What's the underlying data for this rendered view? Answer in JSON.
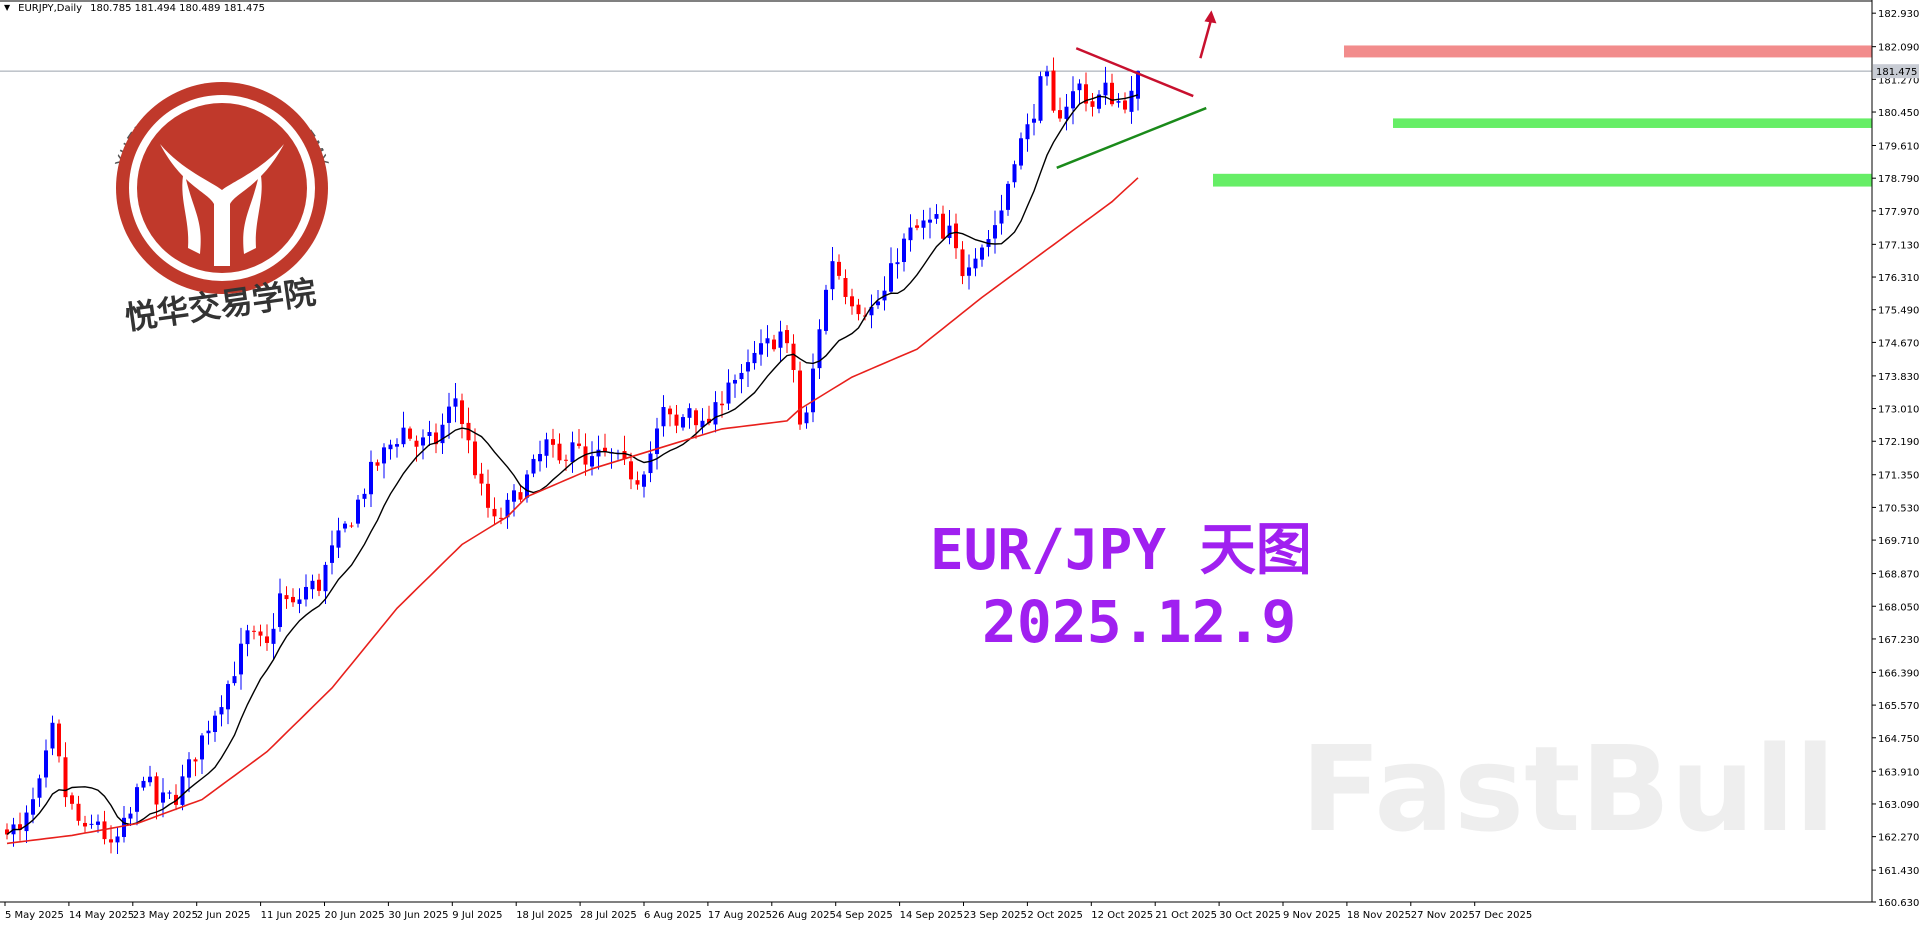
{
  "header": {
    "symbol": "EURJPY,Daily",
    "ohlc": "180.785 181.494 180.489 181.475"
  },
  "overlay": {
    "title": "EUR/JPY  天图",
    "date": "2025.12.9"
  },
  "logo": {
    "text_en": "YUEHUA TRADING ACADEMY",
    "text_cn": "悦华交易学院",
    "color": "#c0392b"
  },
  "watermark": {
    "text": "FastBull"
  },
  "colors": {
    "bull": "#0000ff",
    "bear": "#ff0000",
    "ma_fast": "#000000",
    "ma_slow": "#e8201c",
    "resistance_zone": "#f07878",
    "support_zone": "#66ee66",
    "trendline_upper": "#c8102e",
    "trendline_lower": "#1a8a1a",
    "arrow": "#c8102e",
    "price_line": "#9aa2ac"
  },
  "chart_data": {
    "type": "candlestick",
    "symbol": "EURJPY",
    "timeframe": "Daily",
    "ylim": [
      160.63,
      183.06
    ],
    "y_ticks": [
      "182.930",
      "182.090",
      "181.270",
      "180.450",
      "179.610",
      "178.790",
      "177.970",
      "177.130",
      "176.310",
      "175.490",
      "174.670",
      "173.830",
      "173.010",
      "172.190",
      "171.350",
      "170.530",
      "169.710",
      "168.870",
      "168.050",
      "167.230",
      "166.390",
      "165.570",
      "164.750",
      "163.910",
      "163.090",
      "162.270",
      "161.430",
      "160.630"
    ],
    "current_price": "181.475",
    "x_labels": [
      "5 May 2025",
      "14 May 2025",
      "23 May 2025",
      "2 Jun 2025",
      "11 Jun 2025",
      "20 Jun 2025",
      "30 Jun 2025",
      "9 Jul 2025",
      "18 Jul 2025",
      "28 Jul 2025",
      "6 Aug 2025",
      "17 Aug 2025",
      "26 Aug 2025",
      "4 Sep 2025",
      "14 Sep 2025",
      "23 Sep 2025",
      "2 Oct 2025",
      "12 Oct 2025",
      "21 Oct 2025",
      "30 Oct 2025",
      "9 Nov 2025",
      "18 Nov 2025",
      "27 Nov 2025",
      "7 Dec 2025"
    ],
    "anchors": [
      [
        0,
        162.6
      ],
      [
        2,
        162.3
      ],
      [
        5,
        163.5
      ],
      [
        7,
        164.9
      ],
      [
        9,
        163.3
      ],
      [
        12,
        162.3
      ],
      [
        14,
        162.7
      ],
      [
        16,
        161.9
      ],
      [
        17,
        162.2
      ],
      [
        19,
        162.8
      ],
      [
        21,
        163.9
      ],
      [
        23,
        163.1
      ],
      [
        26,
        163.3
      ],
      [
        28,
        164.0
      ],
      [
        31,
        165.1
      ],
      [
        34,
        166.1
      ],
      [
        37,
        167.3
      ],
      [
        40,
        167.0
      ],
      [
        42,
        168.3
      ],
      [
        44,
        168.0
      ],
      [
        46,
        168.5
      ],
      [
        48,
        168.6
      ],
      [
        50,
        169.4
      ],
      [
        53,
        170.3
      ],
      [
        56,
        171.4
      ],
      [
        59,
        172.1
      ],
      [
        61,
        172.5
      ],
      [
        63,
        172.1
      ],
      [
        66,
        172.2
      ],
      [
        69,
        173.3
      ],
      [
        71,
        172.1
      ],
      [
        73,
        170.9
      ],
      [
        75,
        170.1
      ],
      [
        77,
        170.5
      ],
      [
        79,
        171.0
      ],
      [
        81,
        171.5
      ],
      [
        83,
        172.1
      ],
      [
        85,
        171.6
      ],
      [
        87,
        172.3
      ],
      [
        89,
        171.5
      ],
      [
        91,
        171.8
      ],
      [
        93,
        171.8
      ],
      [
        95,
        171.5
      ],
      [
        97,
        171.3
      ],
      [
        99,
        171.9
      ],
      [
        101,
        172.9
      ],
      [
        103,
        172.5
      ],
      [
        105,
        173.1
      ],
      [
        107,
        172.5
      ],
      [
        109,
        172.9
      ],
      [
        111,
        173.8
      ],
      [
        113,
        173.7
      ],
      [
        115,
        174.3
      ],
      [
        117,
        174.6
      ],
      [
        119,
        174.9
      ],
      [
        121,
        174.0
      ],
      [
        122,
        172.6
      ],
      [
        123,
        172.8
      ],
      [
        125,
        175.1
      ],
      [
        127,
        176.8
      ],
      [
        129,
        176.0
      ],
      [
        131,
        175.6
      ],
      [
        133,
        175.5
      ],
      [
        135,
        175.9
      ],
      [
        137,
        176.9
      ],
      [
        139,
        177.4
      ],
      [
        141,
        177.6
      ],
      [
        143,
        177.7
      ],
      [
        144,
        177.2
      ],
      [
        145,
        177.4
      ],
      [
        146,
        176.9
      ],
      [
        147,
        176.5
      ],
      [
        148,
        176.8
      ],
      [
        149,
        177.0
      ],
      [
        151,
        177.3
      ],
      [
        153,
        178.0
      ],
      [
        155,
        179.4
      ],
      [
        157,
        180.0
      ],
      [
        159,
        181.1
      ],
      [
        160,
        181.2
      ],
      [
        161,
        180.3
      ],
      [
        163,
        180.7
      ],
      [
        165,
        181.1
      ],
      [
        167,
        180.6
      ],
      [
        169,
        181.0
      ],
      [
        171,
        180.7
      ],
      [
        173,
        180.8
      ],
      [
        174,
        181.47
      ]
    ],
    "ma_slow_anchors": [
      [
        0,
        162.1
      ],
      [
        10,
        162.3
      ],
      [
        20,
        162.6
      ],
      [
        30,
        163.2
      ],
      [
        40,
        164.4
      ],
      [
        50,
        166.0
      ],
      [
        60,
        168.0
      ],
      [
        70,
        169.6
      ],
      [
        77,
        170.3
      ],
      [
        80,
        170.8
      ],
      [
        90,
        171.5
      ],
      [
        100,
        172.0
      ],
      [
        110,
        172.5
      ],
      [
        120,
        172.7
      ],
      [
        122,
        173.0
      ],
      [
        130,
        173.8
      ],
      [
        140,
        174.5
      ],
      [
        150,
        175.8
      ],
      [
        160,
        177.0
      ],
      [
        170,
        178.2
      ],
      [
        174,
        178.8
      ]
    ],
    "zones": {
      "resistance": [
        181.82,
        182.12
      ],
      "support_upper": [
        180.05,
        180.29
      ],
      "support_lower": [
        178.58,
        178.9
      ]
    },
    "trendlines": {
      "upper": [
        [
          164.5,
          182.05
        ],
        [
          182.5,
          180.85
        ]
      ],
      "lower": [
        [
          161.5,
          179.05
        ],
        [
          184.5,
          180.55
        ]
      ]
    },
    "breakout_arrow": [
      [
        183.6,
        181.8
      ],
      [
        185.3,
        183.0
      ]
    ]
  }
}
